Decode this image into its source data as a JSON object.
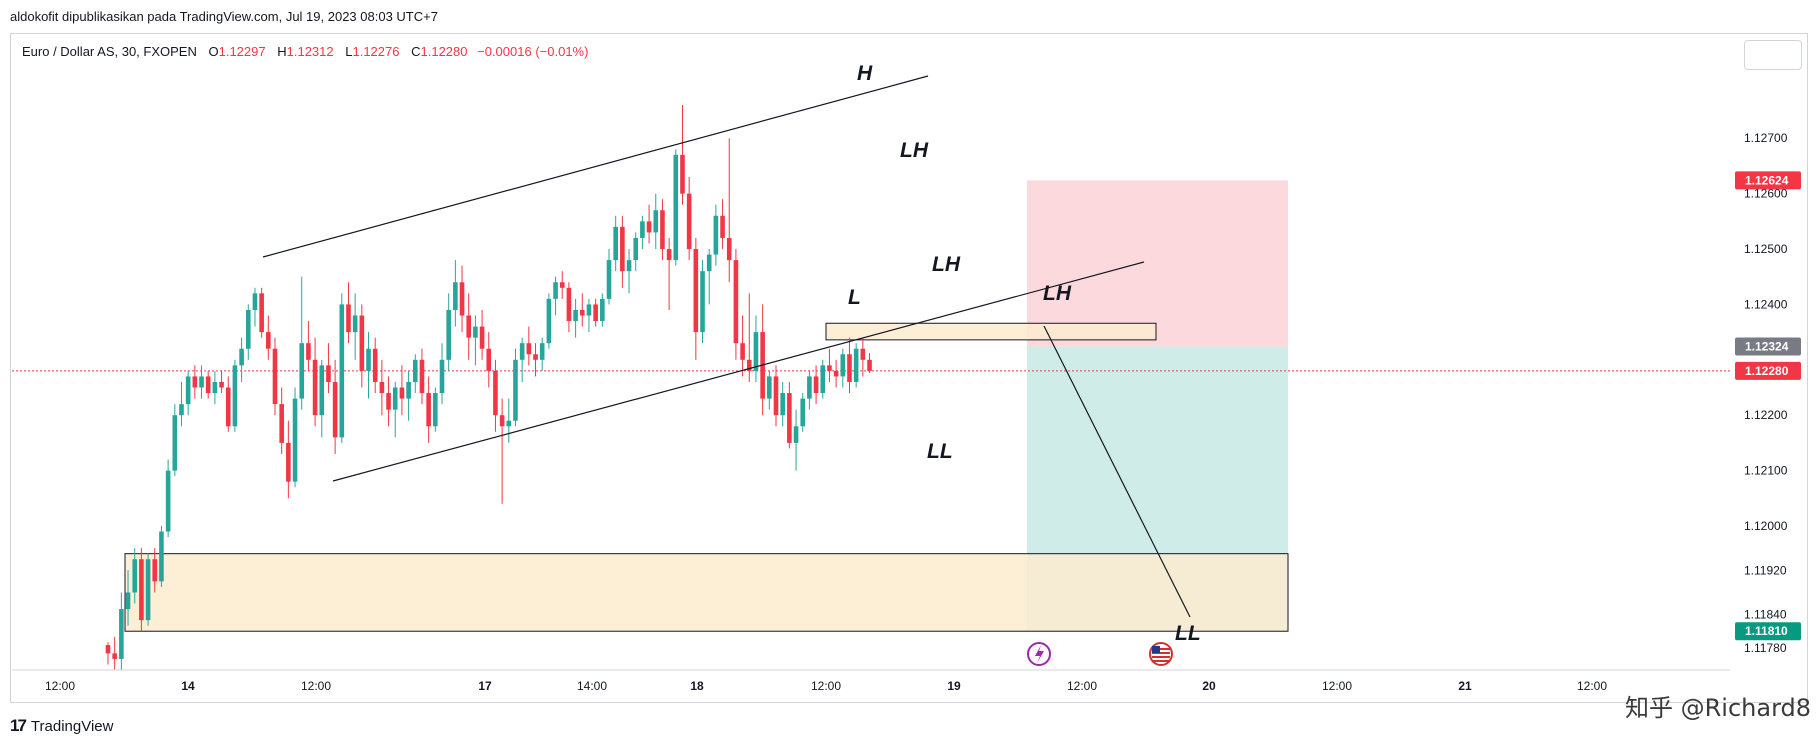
{
  "publication": "aldokofit dipublikasikan pada TradingView.com, Jul 19, 2023 08:03 UTC+7",
  "legend": {
    "symbol": "Euro / Dollar AS, 30, FXOPEN",
    "o_key": "O",
    "o": "1.12297",
    "h_key": "H",
    "h": "1.12312",
    "l_key": "L",
    "l": "1.12276",
    "c_key": "C",
    "c": "1.12280",
    "change": "−0.00016 (−0.01%)"
  },
  "footer": {
    "brand": "TradingView",
    "watermark": "知乎 @Richard8"
  },
  "colors": {
    "up": "#26a69a",
    "down": "#f23645",
    "stop_zone": "#fcd9dd",
    "target_zone": "#d0ece8",
    "demand_zone": "#fdebcf",
    "price_line": "#f23645"
  },
  "chart_data": {
    "type": "candlestick",
    "symbol": "EURUSD",
    "timeframe": "30",
    "y_ticks": [
      1.127,
      1.126,
      1.125,
      1.124,
      1.122,
      1.121,
      1.12,
      1.1192,
      1.1184,
      1.1178
    ],
    "y_tick_labels": [
      "1.12700",
      "1.12600",
      "1.12500",
      "1.12400",
      "1.12200",
      "1.12100",
      "1.12000",
      "1.11920",
      "1.11840",
      "1.11780"
    ],
    "ylim": [
      1.1174,
      1.1289
    ],
    "x_tick_labels": [
      "12:00",
      "14",
      "12:00",
      "17",
      "14:00",
      "18",
      "12:00",
      "19",
      "12:00",
      "20",
      "12:00",
      "21",
      "12:00"
    ],
    "price_badges": [
      {
        "value": 1.12624,
        "label": "1.12624",
        "color": "#f23645"
      },
      {
        "value": 1.12324,
        "label": "1.12324",
        "color": "#787b86"
      },
      {
        "value": 1.1228,
        "label": "1.12280",
        "color": "#f23645"
      },
      {
        "value": 1.1181,
        "label": "1.11810",
        "color": "#089981"
      }
    ],
    "last_price": 1.1228,
    "position": {
      "side": "short",
      "entry": 1.12324,
      "stop": 1.12624,
      "target": 1.1181
    },
    "zones": [
      {
        "label": "L",
        "top": 1.12366,
        "bottom": 1.12336
      },
      {
        "label": "",
        "top": 1.1195,
        "bottom": 1.1181
      }
    ],
    "annotations": [
      "H",
      "LH",
      "LH",
      "L",
      "LH",
      "LL",
      "LL"
    ],
    "candles": [
      {
        "o": 1.11785,
        "h": 1.1179,
        "l": 1.1175,
        "c": 1.1177
      },
      {
        "o": 1.1177,
        "h": 1.118,
        "l": 1.1174,
        "c": 1.1176
      },
      {
        "o": 1.1176,
        "h": 1.1188,
        "l": 1.1174,
        "c": 1.1185
      },
      {
        "o": 1.1185,
        "h": 1.1192,
        "l": 1.1182,
        "c": 1.1188
      },
      {
        "o": 1.1188,
        "h": 1.1196,
        "l": 1.1186,
        "c": 1.1194
      },
      {
        "o": 1.1194,
        "h": 1.1196,
        "l": 1.1181,
        "c": 1.1183
      },
      {
        "o": 1.1183,
        "h": 1.1195,
        "l": 1.1182,
        "c": 1.1194
      },
      {
        "o": 1.1194,
        "h": 1.1196,
        "l": 1.1188,
        "c": 1.119
      },
      {
        "o": 1.119,
        "h": 1.12,
        "l": 1.1189,
        "c": 1.1199
      },
      {
        "o": 1.1199,
        "h": 1.1212,
        "l": 1.1198,
        "c": 1.121
      },
      {
        "o": 1.121,
        "h": 1.1222,
        "l": 1.1209,
        "c": 1.122
      },
      {
        "o": 1.122,
        "h": 1.1226,
        "l": 1.1218,
        "c": 1.1222
      },
      {
        "o": 1.1222,
        "h": 1.1228,
        "l": 1.122,
        "c": 1.1227
      },
      {
        "o": 1.1227,
        "h": 1.1229,
        "l": 1.1223,
        "c": 1.1225
      },
      {
        "o": 1.1225,
        "h": 1.1229,
        "l": 1.1223,
        "c": 1.1227
      },
      {
        "o": 1.1227,
        "h": 1.1228,
        "l": 1.1223,
        "c": 1.1224
      },
      {
        "o": 1.1224,
        "h": 1.1228,
        "l": 1.1222,
        "c": 1.1226
      },
      {
        "o": 1.1226,
        "h": 1.1228,
        "l": 1.1224,
        "c": 1.1225
      },
      {
        "o": 1.1225,
        "h": 1.1227,
        "l": 1.1217,
        "c": 1.1218
      },
      {
        "o": 1.1218,
        "h": 1.123,
        "l": 1.1217,
        "c": 1.1229
      },
      {
        "o": 1.1229,
        "h": 1.1234,
        "l": 1.1226,
        "c": 1.1232
      },
      {
        "o": 1.1232,
        "h": 1.124,
        "l": 1.123,
        "c": 1.1239
      },
      {
        "o": 1.1239,
        "h": 1.1243,
        "l": 1.1236,
        "c": 1.1242
      },
      {
        "o": 1.1242,
        "h": 1.1243,
        "l": 1.1234,
        "c": 1.1235
      },
      {
        "o": 1.1235,
        "h": 1.1238,
        "l": 1.123,
        "c": 1.1232
      },
      {
        "o": 1.1232,
        "h": 1.1234,
        "l": 1.122,
        "c": 1.1222
      },
      {
        "o": 1.1222,
        "h": 1.1225,
        "l": 1.1213,
        "c": 1.1215
      },
      {
        "o": 1.1215,
        "h": 1.1219,
        "l": 1.1205,
        "c": 1.1208
      },
      {
        "o": 1.1208,
        "h": 1.1225,
        "l": 1.1207,
        "c": 1.1223
      },
      {
        "o": 1.1223,
        "h": 1.1245,
        "l": 1.1221,
        "c": 1.1233
      },
      {
        "o": 1.1233,
        "h": 1.1237,
        "l": 1.1228,
        "c": 1.123
      },
      {
        "o": 1.123,
        "h": 1.1234,
        "l": 1.1218,
        "c": 1.122
      },
      {
        "o": 1.122,
        "h": 1.123,
        "l": 1.1216,
        "c": 1.1229
      },
      {
        "o": 1.1229,
        "h": 1.1233,
        "l": 1.1224,
        "c": 1.1226
      },
      {
        "o": 1.1226,
        "h": 1.123,
        "l": 1.1213,
        "c": 1.1216
      },
      {
        "o": 1.1216,
        "h": 1.1242,
        "l": 1.1215,
        "c": 1.124
      },
      {
        "o": 1.124,
        "h": 1.1244,
        "l": 1.1233,
        "c": 1.1235
      },
      {
        "o": 1.1235,
        "h": 1.1242,
        "l": 1.123,
        "c": 1.1238
      },
      {
        "o": 1.1238,
        "h": 1.124,
        "l": 1.1225,
        "c": 1.1228
      },
      {
        "o": 1.1228,
        "h": 1.1235,
        "l": 1.1223,
        "c": 1.1232
      },
      {
        "o": 1.1232,
        "h": 1.1234,
        "l": 1.1224,
        "c": 1.1226
      },
      {
        "o": 1.1226,
        "h": 1.123,
        "l": 1.122,
        "c": 1.1224
      },
      {
        "o": 1.1224,
        "h": 1.1227,
        "l": 1.1218,
        "c": 1.1221
      },
      {
        "o": 1.1221,
        "h": 1.1226,
        "l": 1.1216,
        "c": 1.1225
      },
      {
        "o": 1.1225,
        "h": 1.1229,
        "l": 1.122,
        "c": 1.1223
      },
      {
        "o": 1.1223,
        "h": 1.1228,
        "l": 1.1219,
        "c": 1.1226
      },
      {
        "o": 1.1226,
        "h": 1.1231,
        "l": 1.1224,
        "c": 1.123
      },
      {
        "o": 1.123,
        "h": 1.1232,
        "l": 1.1222,
        "c": 1.1224
      },
      {
        "o": 1.1224,
        "h": 1.1227,
        "l": 1.1215,
        "c": 1.1218
      },
      {
        "o": 1.1218,
        "h": 1.1225,
        "l": 1.1217,
        "c": 1.1224
      },
      {
        "o": 1.1224,
        "h": 1.1233,
        "l": 1.1222,
        "c": 1.123
      },
      {
        "o": 1.123,
        "h": 1.1242,
        "l": 1.1228,
        "c": 1.1239
      },
      {
        "o": 1.1239,
        "h": 1.1248,
        "l": 1.1236,
        "c": 1.1244
      },
      {
        "o": 1.1244,
        "h": 1.1247,
        "l": 1.1235,
        "c": 1.1238
      },
      {
        "o": 1.1238,
        "h": 1.1242,
        "l": 1.123,
        "c": 1.1234
      },
      {
        "o": 1.1234,
        "h": 1.1238,
        "l": 1.1229,
        "c": 1.1236
      },
      {
        "o": 1.1236,
        "h": 1.1239,
        "l": 1.123,
        "c": 1.1232
      },
      {
        "o": 1.1232,
        "h": 1.1235,
        "l": 1.1225,
        "c": 1.1228
      },
      {
        "o": 1.1228,
        "h": 1.123,
        "l": 1.1217,
        "c": 1.122
      },
      {
        "o": 1.122,
        "h": 1.1223,
        "l": 1.1204,
        "c": 1.1218
      },
      {
        "o": 1.1218,
        "h": 1.1223,
        "l": 1.1215,
        "c": 1.1219
      },
      {
        "o": 1.1219,
        "h": 1.1232,
        "l": 1.1218,
        "c": 1.123
      },
      {
        "o": 1.123,
        "h": 1.1234,
        "l": 1.1226,
        "c": 1.1233
      },
      {
        "o": 1.1233,
        "h": 1.1236,
        "l": 1.1229,
        "c": 1.1231
      },
      {
        "o": 1.1231,
        "h": 1.1233,
        "l": 1.1227,
        "c": 1.123
      },
      {
        "o": 1.123,
        "h": 1.1234,
        "l": 1.1228,
        "c": 1.1233
      },
      {
        "o": 1.1233,
        "h": 1.1242,
        "l": 1.1232,
        "c": 1.1241
      },
      {
        "o": 1.1241,
        "h": 1.1245,
        "l": 1.1238,
        "c": 1.1244
      },
      {
        "o": 1.1244,
        "h": 1.1246,
        "l": 1.1241,
        "c": 1.1243
      },
      {
        "o": 1.1243,
        "h": 1.1244,
        "l": 1.1235,
        "c": 1.1237
      },
      {
        "o": 1.1237,
        "h": 1.1241,
        "l": 1.1234,
        "c": 1.1239
      },
      {
        "o": 1.1239,
        "h": 1.1242,
        "l": 1.1236,
        "c": 1.1238
      },
      {
        "o": 1.1238,
        "h": 1.1241,
        "l": 1.1235,
        "c": 1.124
      },
      {
        "o": 1.124,
        "h": 1.1241,
        "l": 1.1236,
        "c": 1.1237
      },
      {
        "o": 1.1237,
        "h": 1.1242,
        "l": 1.1236,
        "c": 1.1241
      },
      {
        "o": 1.1241,
        "h": 1.125,
        "l": 1.124,
        "c": 1.1248
      },
      {
        "o": 1.1248,
        "h": 1.1256,
        "l": 1.1246,
        "c": 1.1254
      },
      {
        "o": 1.1254,
        "h": 1.1256,
        "l": 1.1243,
        "c": 1.1246
      },
      {
        "o": 1.1246,
        "h": 1.125,
        "l": 1.1242,
        "c": 1.1248
      },
      {
        "o": 1.1248,
        "h": 1.1253,
        "l": 1.1246,
        "c": 1.1252
      },
      {
        "o": 1.1252,
        "h": 1.1256,
        "l": 1.125,
        "c": 1.1255
      },
      {
        "o": 1.1255,
        "h": 1.1258,
        "l": 1.1251,
        "c": 1.1253
      },
      {
        "o": 1.1253,
        "h": 1.126,
        "l": 1.125,
        "c": 1.1257
      },
      {
        "o": 1.1257,
        "h": 1.1259,
        "l": 1.1248,
        "c": 1.125
      },
      {
        "o": 1.125,
        "h": 1.1252,
        "l": 1.1239,
        "c": 1.1248
      },
      {
        "o": 1.1248,
        "h": 1.1268,
        "l": 1.1247,
        "c": 1.1267
      },
      {
        "o": 1.1267,
        "h": 1.1276,
        "l": 1.1258,
        "c": 1.126
      },
      {
        "o": 1.126,
        "h": 1.1263,
        "l": 1.1248,
        "c": 1.125
      },
      {
        "o": 1.125,
        "h": 1.1252,
        "l": 1.123,
        "c": 1.1235
      },
      {
        "o": 1.1235,
        "h": 1.1248,
        "l": 1.1233,
        "c": 1.1246
      },
      {
        "o": 1.1246,
        "h": 1.125,
        "l": 1.124,
        "c": 1.1249
      },
      {
        "o": 1.1249,
        "h": 1.1258,
        "l": 1.1247,
        "c": 1.1256
      },
      {
        "o": 1.1256,
        "h": 1.1259,
        "l": 1.125,
        "c": 1.1252
      },
      {
        "o": 1.1252,
        "h": 1.127,
        "l": 1.1244,
        "c": 1.1248
      },
      {
        "o": 1.1248,
        "h": 1.125,
        "l": 1.123,
        "c": 1.1233
      },
      {
        "o": 1.1233,
        "h": 1.1238,
        "l": 1.1227,
        "c": 1.123
      },
      {
        "o": 1.123,
        "h": 1.1242,
        "l": 1.1226,
        "c": 1.1228
      },
      {
        "o": 1.1228,
        "h": 1.1238,
        "l": 1.1226,
        "c": 1.1235
      },
      {
        "o": 1.1235,
        "h": 1.124,
        "l": 1.122,
        "c": 1.1223
      },
      {
        "o": 1.1223,
        "h": 1.1228,
        "l": 1.1221,
        "c": 1.1227
      },
      {
        "o": 1.1227,
        "h": 1.1229,
        "l": 1.1218,
        "c": 1.122
      },
      {
        "o": 1.122,
        "h": 1.1226,
        "l": 1.1218,
        "c": 1.1224
      },
      {
        "o": 1.1224,
        "h": 1.1226,
        "l": 1.1214,
        "c": 1.1215
      },
      {
        "o": 1.1215,
        "h": 1.1221,
        "l": 1.121,
        "c": 1.1218
      },
      {
        "o": 1.1218,
        "h": 1.1224,
        "l": 1.1217,
        "c": 1.1223
      },
      {
        "o": 1.1223,
        "h": 1.1228,
        "l": 1.1221,
        "c": 1.1227
      },
      {
        "o": 1.1227,
        "h": 1.1229,
        "l": 1.1222,
        "c": 1.1224
      },
      {
        "o": 1.1224,
        "h": 1.123,
        "l": 1.1223,
        "c": 1.1229
      },
      {
        "o": 1.1229,
        "h": 1.1232,
        "l": 1.1226,
        "c": 1.1228
      },
      {
        "o": 1.1228,
        "h": 1.123,
        "l": 1.1225,
        "c": 1.1227
      },
      {
        "o": 1.1227,
        "h": 1.1232,
        "l": 1.1225,
        "c": 1.1231
      },
      {
        "o": 1.1231,
        "h": 1.1234,
        "l": 1.1224,
        "c": 1.1226
      },
      {
        "o": 1.1226,
        "h": 1.1233,
        "l": 1.1225,
        "c": 1.1232
      },
      {
        "o": 1.1232,
        "h": 1.1234,
        "l": 1.1227,
        "c": 1.123
      },
      {
        "o": 1.123,
        "h": 1.12312,
        "l": 1.12276,
        "c": 1.1228
      }
    ]
  }
}
